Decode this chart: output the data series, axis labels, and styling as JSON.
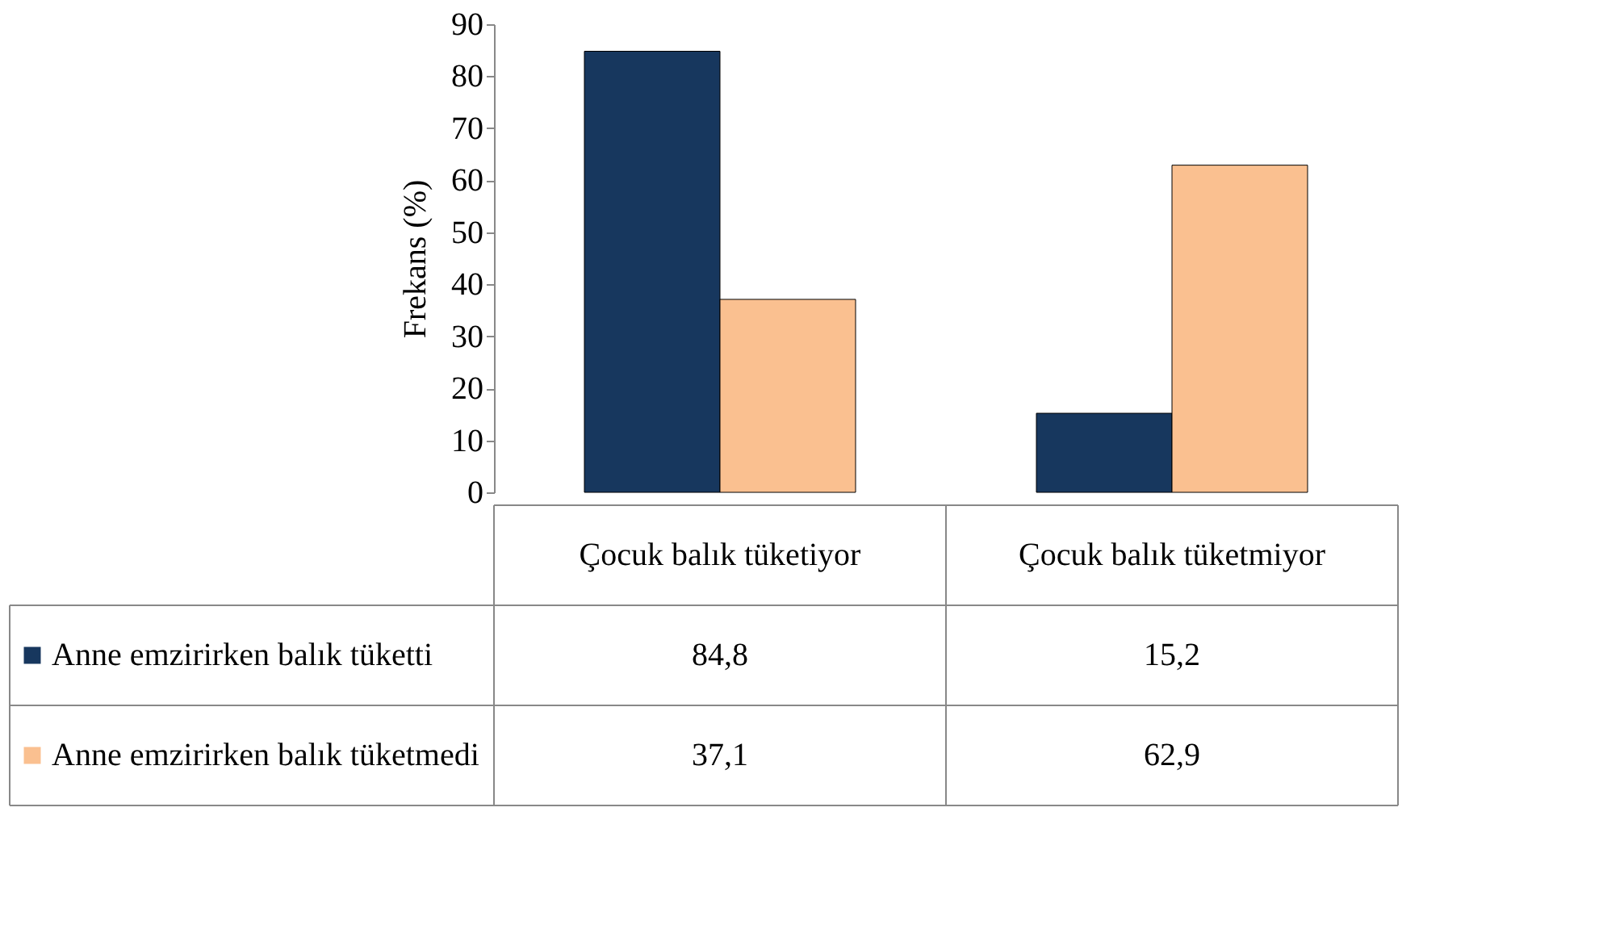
{
  "chart_data": {
    "type": "bar",
    "ylabel": "Frekans (%)",
    "categories": [
      "Çocuk balık tüketiyor",
      "Çocuk balık tüketmiyor"
    ],
    "series": [
      {
        "name": "Anne emzirirken balık tüketti",
        "color": "#17375e",
        "values": [
          84.8,
          15.2
        ],
        "value_labels": [
          "84,8",
          "15,2"
        ]
      },
      {
        "name": "Anne emzirirken balık tüketmedi",
        "color": "#fac090",
        "values": [
          37.1,
          62.9
        ],
        "value_labels": [
          "37,1",
          "62,9"
        ]
      }
    ],
    "ylim": [
      0,
      90
    ],
    "yticks": [
      0,
      10,
      20,
      30,
      40,
      50,
      60,
      70,
      80,
      90
    ],
    "grid": false,
    "legend": "bottom"
  }
}
